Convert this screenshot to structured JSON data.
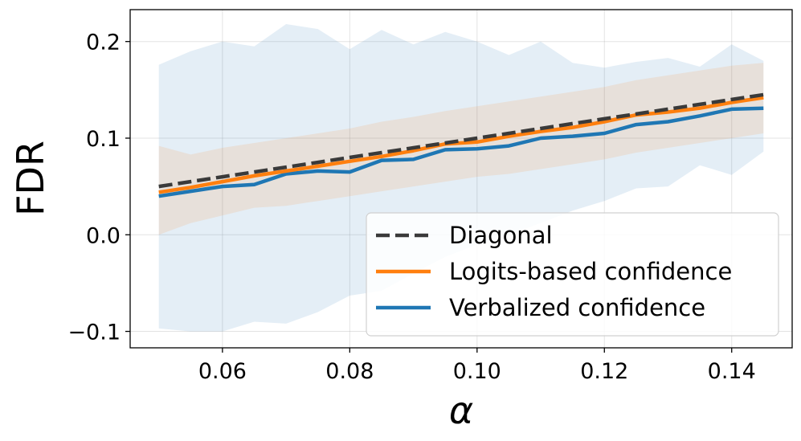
{
  "chart_data": {
    "type": "line",
    "title": "",
    "xlabel": "α",
    "ylabel": "FDR",
    "xlim": [
      0.0455,
      0.1495
    ],
    "ylim": [
      -0.117,
      0.233
    ],
    "grid": true,
    "x_ticks": [
      0.06,
      0.08,
      0.1,
      0.12,
      0.14
    ],
    "x_tick_labels": [
      "0.06",
      "0.08",
      "0.10",
      "0.12",
      "0.14"
    ],
    "y_ticks": [
      -0.1,
      0.0,
      0.1,
      0.2
    ],
    "y_tick_labels": [
      "−0.1",
      "0.0",
      "0.1",
      "0.2"
    ],
    "legend_position": "lower-right",
    "x": [
      0.05,
      0.055,
      0.06,
      0.065,
      0.07,
      0.075,
      0.08,
      0.085,
      0.09,
      0.095,
      0.1,
      0.105,
      0.11,
      0.115,
      0.12,
      0.125,
      0.13,
      0.135,
      0.14,
      0.145
    ],
    "series": [
      {
        "name": "Diagonal",
        "color": "#3a3a3a",
        "style": "dashed",
        "values": [
          0.05,
          0.055,
          0.06,
          0.065,
          0.07,
          0.075,
          0.08,
          0.085,
          0.09,
          0.095,
          0.1,
          0.105,
          0.11,
          0.115,
          0.12,
          0.125,
          0.13,
          0.135,
          0.14,
          0.145
        ]
      },
      {
        "name": "Logits-based confidence",
        "color": "#ff7f0e",
        "style": "solid",
        "values": [
          0.044,
          0.049,
          0.055,
          0.061,
          0.066,
          0.071,
          0.076,
          0.081,
          0.087,
          0.094,
          0.096,
          0.102,
          0.107,
          0.111,
          0.117,
          0.124,
          0.127,
          0.131,
          0.137,
          0.142
        ],
        "band_lower": [
          0.0,
          0.012,
          0.02,
          0.028,
          0.03,
          0.035,
          0.04,
          0.045,
          0.05,
          0.055,
          0.06,
          0.063,
          0.068,
          0.073,
          0.078,
          0.085,
          0.09,
          0.095,
          0.1,
          0.105
        ],
        "band_upper": [
          0.092,
          0.083,
          0.09,
          0.095,
          0.1,
          0.105,
          0.11,
          0.117,
          0.122,
          0.128,
          0.133,
          0.138,
          0.143,
          0.148,
          0.153,
          0.16,
          0.165,
          0.17,
          0.175,
          0.178
        ]
      },
      {
        "name": "Verbalized confidence",
        "color": "#1f77b4",
        "style": "solid",
        "values": [
          0.04,
          0.045,
          0.05,
          0.052,
          0.063,
          0.066,
          0.065,
          0.077,
          0.078,
          0.088,
          0.089,
          0.092,
          0.1,
          0.102,
          0.105,
          0.114,
          0.117,
          0.123,
          0.13,
          0.131
        ],
        "band_lower": [
          -0.097,
          -0.1,
          -0.1,
          -0.09,
          -0.092,
          -0.08,
          -0.063,
          -0.058,
          -0.04,
          -0.023,
          -0.01,
          0.0,
          0.012,
          0.025,
          0.035,
          0.048,
          0.05,
          0.072,
          0.062,
          0.086
        ],
        "band_upper": [
          0.176,
          0.19,
          0.2,
          0.195,
          0.218,
          0.213,
          0.192,
          0.212,
          0.197,
          0.21,
          0.2,
          0.186,
          0.2,
          0.178,
          0.173,
          0.179,
          0.183,
          0.174,
          0.197,
          0.18
        ]
      }
    ]
  }
}
